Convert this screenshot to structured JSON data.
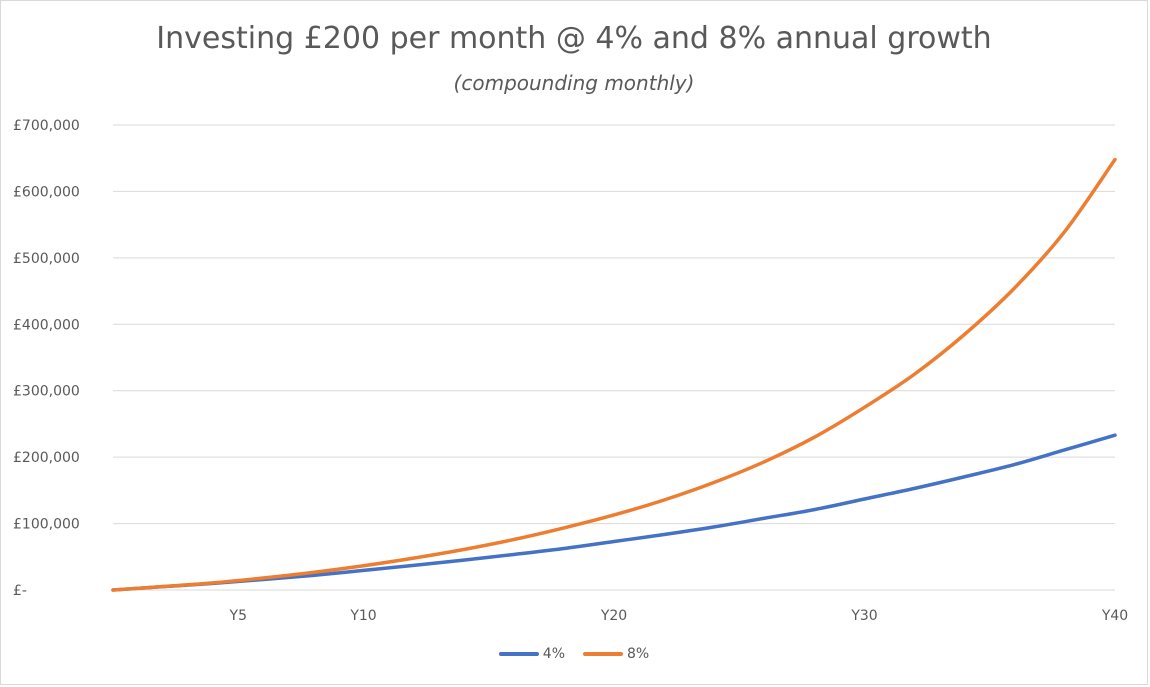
{
  "chart_data": {
    "type": "line",
    "title": "Investing £200 per month @ 4% and 8% annual growth",
    "subtitle": "(compounding monthly)",
    "xlabel": "",
    "ylabel": "",
    "x_range": [
      0,
      40
    ],
    "ylim": [
      0,
      700000
    ],
    "y_ticks": [
      0,
      100000,
      200000,
      300000,
      400000,
      500000,
      600000,
      700000
    ],
    "y_tick_labels": [
      "£-",
      "£100,000",
      "£200,000",
      "£300,000",
      "£400,000",
      "£500,000",
      "£600,000",
      "£700,000"
    ],
    "x_ticks": [
      5,
      10,
      20,
      30,
      40
    ],
    "x_tick_labels": [
      "Y5",
      "Y10",
      "Y20",
      "Y30",
      "Y40"
    ],
    "grid": "horizontal",
    "legend": "bottom",
    "x": [
      0,
      2,
      4,
      6,
      8,
      10,
      12,
      14,
      16,
      18,
      20,
      22,
      24,
      26,
      28,
      30,
      32,
      34,
      36,
      38,
      40
    ],
    "series": [
      {
        "name": "4%",
        "color": "#4472c4",
        "values": [
          0,
          5000,
          10000,
          15800,
          22000,
          29500,
          37000,
          45000,
          53500,
          62500,
          73000,
          83500,
          95000,
          108000,
          121000,
          137000,
          153000,
          170500,
          189000,
          211000,
          233000
        ]
      },
      {
        "name": "8%",
        "color": "#ed7d31",
        "values": [
          0,
          5200,
          10700,
          18000,
          26500,
          36500,
          48000,
          61000,
          76000,
          93500,
          113000,
          135500,
          162000,
          193000,
          230000,
          275000,
          325000,
          385000,
          455000,
          540000,
          648000
        ]
      }
    ]
  }
}
